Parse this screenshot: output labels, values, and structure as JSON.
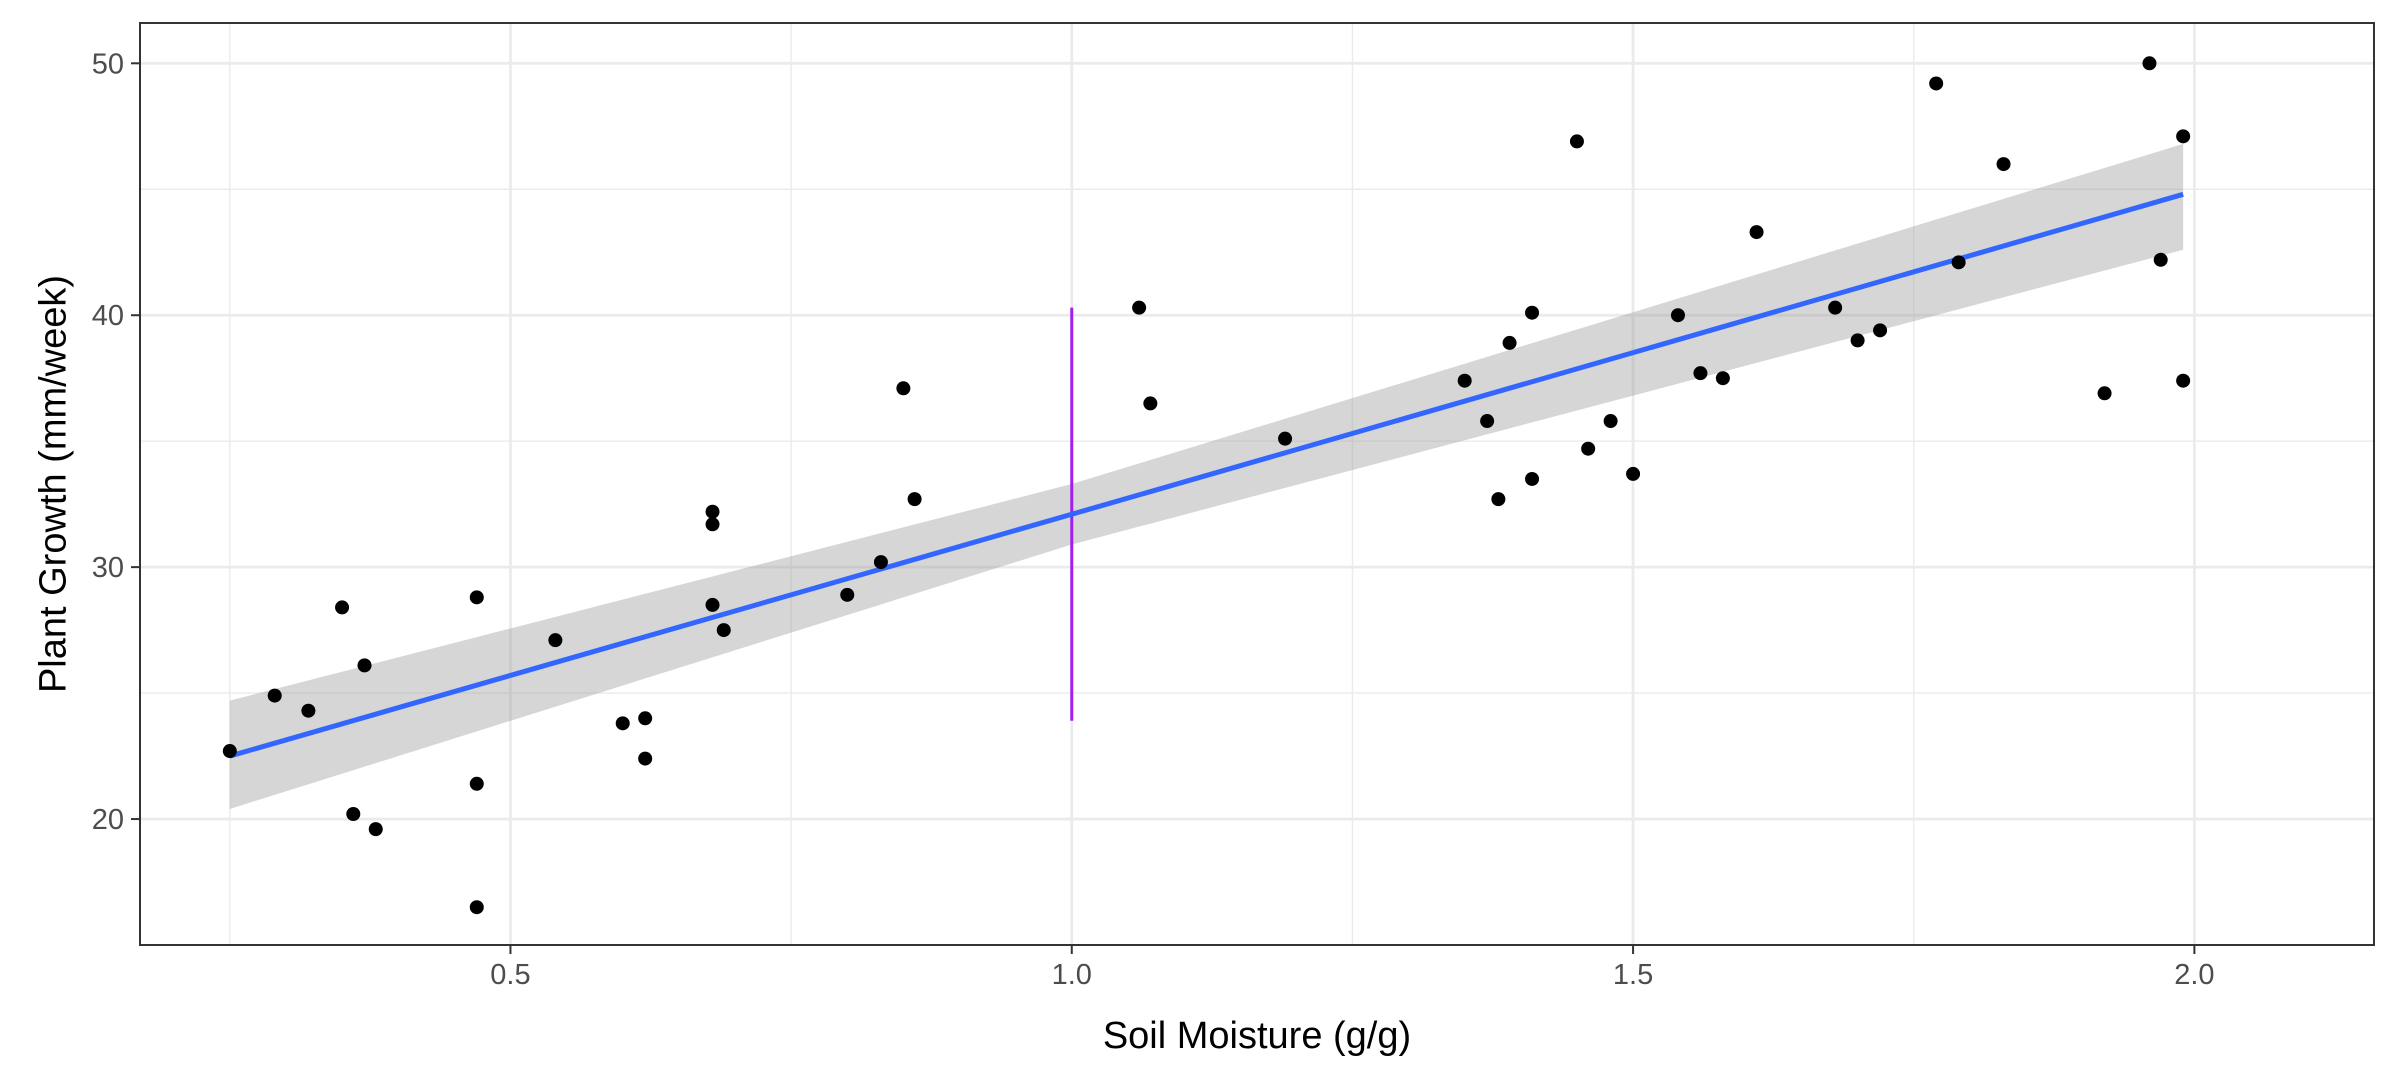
{
  "chart_data": {
    "type": "scatter",
    "title": "",
    "xlabel": "Soil Moisture (g/g)",
    "ylabel": "Plant Growth (mm/week)",
    "xlim": [
      0.17,
      2.16
    ],
    "ylim": [
      15.0,
      51.6
    ],
    "x_ticks": [
      {
        "value": 0.5,
        "label": "0.5"
      },
      {
        "value": 1.0,
        "label": "1.0"
      },
      {
        "value": 1.5,
        "label": "1.5"
      },
      {
        "value": 2.0,
        "label": "2.0"
      }
    ],
    "y_ticks": [
      {
        "value": 20,
        "label": "20"
      },
      {
        "value": 30,
        "label": "30"
      },
      {
        "value": 40,
        "label": "40"
      },
      {
        "value": 50,
        "label": "50"
      }
    ],
    "grid": true,
    "legend": "none",
    "colors": {
      "points": "#000000",
      "fit_line": "#3366ff",
      "confidence_band": "#999999",
      "vertical_marker": "#a020f0",
      "grid": "#ebebeb",
      "panel_border": "#333333"
    },
    "series": [
      {
        "type": "scatter",
        "points": [
          [
            0.25,
            22.7
          ],
          [
            0.29,
            24.9
          ],
          [
            0.32,
            24.3
          ],
          [
            0.35,
            28.4
          ],
          [
            0.36,
            20.2
          ],
          [
            0.37,
            26.1
          ],
          [
            0.38,
            19.6
          ],
          [
            0.47,
            21.4
          ],
          [
            0.47,
            16.5
          ],
          [
            0.47,
            28.8
          ],
          [
            0.54,
            27.1
          ],
          [
            0.6,
            23.8
          ],
          [
            0.62,
            24.0
          ],
          [
            0.62,
            22.4
          ],
          [
            0.68,
            28.5
          ],
          [
            0.68,
            31.7
          ],
          [
            0.68,
            32.2
          ],
          [
            0.69,
            27.5
          ],
          [
            0.8,
            28.9
          ],
          [
            0.83,
            30.2
          ],
          [
            0.85,
            37.1
          ],
          [
            0.86,
            32.7
          ],
          [
            1.06,
            40.3
          ],
          [
            1.07,
            36.5
          ],
          [
            1.19,
            35.1
          ],
          [
            1.35,
            37.4
          ],
          [
            1.37,
            35.8
          ],
          [
            1.38,
            32.7
          ],
          [
            1.39,
            38.9
          ],
          [
            1.41,
            40.1
          ],
          [
            1.41,
            33.5
          ],
          [
            1.45,
            46.9
          ],
          [
            1.46,
            34.7
          ],
          [
            1.48,
            35.8
          ],
          [
            1.5,
            33.7
          ],
          [
            1.54,
            40.0
          ],
          [
            1.56,
            37.7
          ],
          [
            1.58,
            37.5
          ],
          [
            1.61,
            43.3
          ],
          [
            1.68,
            40.3
          ],
          [
            1.7,
            39.0
          ],
          [
            1.72,
            39.4
          ],
          [
            1.77,
            49.2
          ],
          [
            1.79,
            42.1
          ],
          [
            1.83,
            46.0
          ],
          [
            1.92,
            36.9
          ],
          [
            1.96,
            50.0
          ],
          [
            1.97,
            42.2
          ],
          [
            1.99,
            47.1
          ],
          [
            1.99,
            37.4
          ]
        ]
      },
      {
        "type": "line",
        "x": [
          0.25,
          1.0,
          1.99
        ],
        "y": [
          22.5,
          32.1,
          44.8
        ]
      },
      {
        "type": "band",
        "x": [
          0.25,
          1.0,
          1.99
        ],
        "lower": [
          20.4,
          30.9,
          42.6
        ],
        "upper": [
          24.7,
          33.3,
          46.8
        ]
      }
    ],
    "vertical_marker": {
      "x": 1.0,
      "y_from": 23.9,
      "y_to": 40.3
    }
  }
}
